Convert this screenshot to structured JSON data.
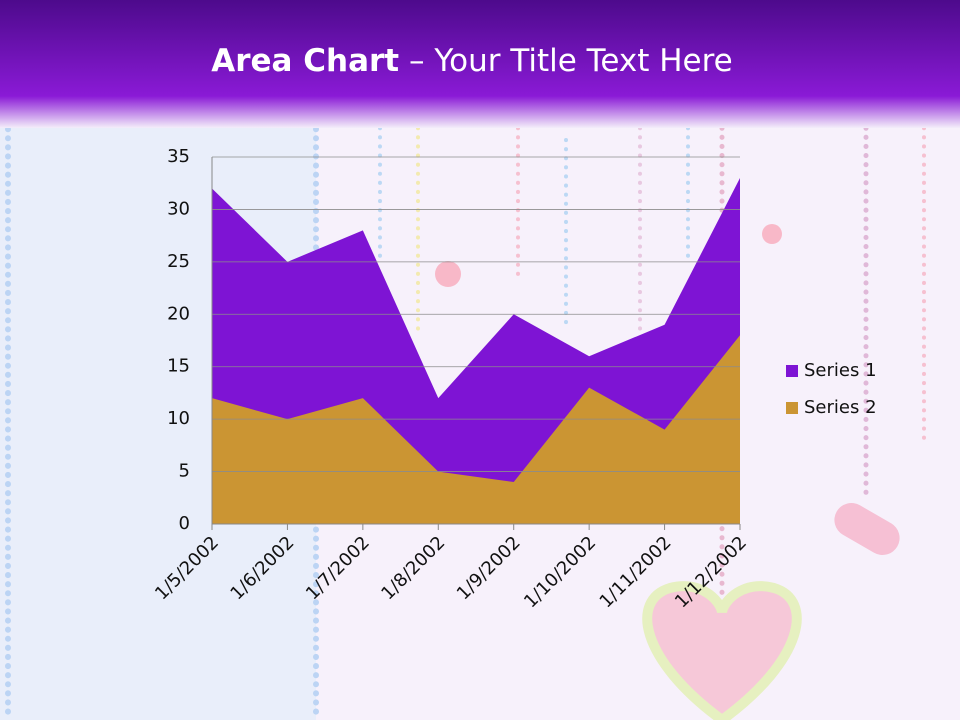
{
  "chart_data": {
    "type": "area",
    "title": "Area Chart",
    "subtitle": "– Your Title Text Here",
    "categories": [
      "1/5/2002",
      "1/6/2002",
      "1/7/2002",
      "1/8/2002",
      "1/9/2002",
      "1/10/2002",
      "1/11/2002",
      "1/12/2002"
    ],
    "series": [
      {
        "name": "Series 1",
        "color": "#7e14d4",
        "values": [
          32,
          25,
          28,
          12,
          20,
          16,
          19,
          33
        ]
      },
      {
        "name": "Series 2",
        "color": "#cb9533",
        "values": [
          12,
          10,
          12,
          5,
          4,
          13,
          9,
          18
        ]
      }
    ],
    "ylim": [
      0,
      35
    ],
    "yticks": [
      0,
      5,
      10,
      15,
      20,
      25,
      30,
      35
    ],
    "grid": true,
    "legend": "right"
  }
}
